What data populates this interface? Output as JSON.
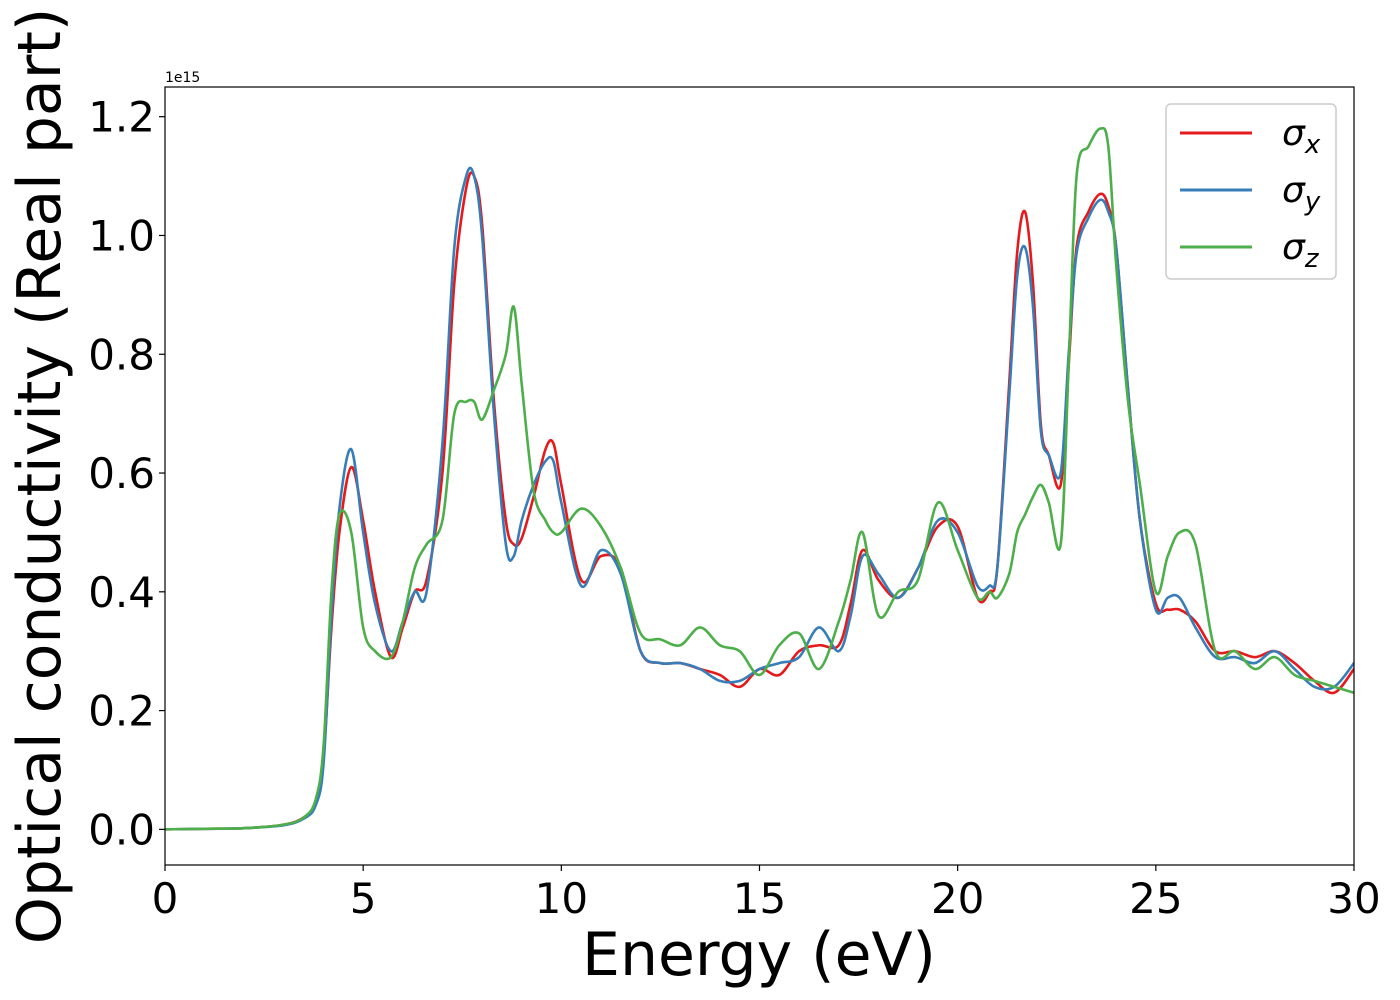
{
  "chart_data": {
    "type": "line",
    "title": "",
    "xlabel": "Energy (eV)",
    "ylabel": "Optical conductivity (Real part)",
    "y_offset_label": "1e15",
    "xlim": [
      0,
      30
    ],
    "ylim": [
      -0.06,
      1.25
    ],
    "x_ticks": [
      0,
      5,
      10,
      15,
      20,
      25,
      30
    ],
    "y_ticks": [
      0.0,
      0.2,
      0.4,
      0.6,
      0.8,
      1.0,
      1.2
    ],
    "x_tick_labels": [
      "0",
      "5",
      "10",
      "15",
      "20",
      "25",
      "30"
    ],
    "y_tick_labels": [
      "0.0",
      "0.2",
      "0.4",
      "0.6",
      "0.8",
      "1.0",
      "1.2"
    ],
    "grid": false,
    "legend_position": "upper-right",
    "series": [
      {
        "name": "σx",
        "symbol": "σ",
        "subscript": "x",
        "color": "#e41a1c",
        "x": [
          0,
          1,
          2,
          3,
          3.5,
          3.8,
          4.0,
          4.2,
          4.4,
          4.7,
          5.0,
          5.3,
          5.7,
          6.0,
          6.3,
          6.6,
          7.0,
          7.3,
          7.6,
          7.8,
          8.0,
          8.3,
          8.6,
          8.8,
          9.0,
          9.3,
          9.6,
          9.8,
          10.0,
          10.5,
          11.0,
          11.5,
          12.0,
          12.5,
          13.0,
          13.5,
          14.0,
          14.5,
          15.0,
          15.5,
          16.0,
          16.5,
          17.0,
          17.3,
          17.6,
          18.0,
          18.5,
          19.0,
          19.5,
          20.0,
          20.5,
          20.8,
          21.0,
          21.3,
          21.5,
          21.7,
          21.9,
          22.1,
          22.3,
          22.6,
          22.8,
          23.0,
          23.3,
          23.6,
          23.8,
          24.0,
          24.3,
          24.6,
          25.0,
          25.3,
          25.6,
          26.0,
          26.5,
          27.0,
          27.5,
          28.0,
          28.5,
          29.0,
          29.5,
          30.0
        ],
        "values": [
          0.0,
          0.001,
          0.002,
          0.008,
          0.02,
          0.045,
          0.12,
          0.34,
          0.5,
          0.61,
          0.52,
          0.4,
          0.29,
          0.34,
          0.4,
          0.42,
          0.6,
          0.92,
          1.08,
          1.1,
          1.02,
          0.72,
          0.52,
          0.48,
          0.49,
          0.56,
          0.64,
          0.65,
          0.58,
          0.42,
          0.46,
          0.44,
          0.3,
          0.28,
          0.28,
          0.27,
          0.26,
          0.24,
          0.27,
          0.26,
          0.3,
          0.31,
          0.31,
          0.38,
          0.47,
          0.42,
          0.39,
          0.44,
          0.51,
          0.51,
          0.39,
          0.4,
          0.44,
          0.75,
          0.97,
          1.04,
          0.92,
          0.68,
          0.63,
          0.58,
          0.78,
          0.98,
          1.04,
          1.07,
          1.05,
          0.98,
          0.74,
          0.52,
          0.38,
          0.37,
          0.37,
          0.35,
          0.3,
          0.3,
          0.29,
          0.3,
          0.28,
          0.25,
          0.23,
          0.27
        ]
      },
      {
        "name": "σy",
        "symbol": "σ",
        "subscript": "y",
        "color": "#377eb8",
        "x": [
          0,
          1,
          2,
          3,
          3.5,
          3.8,
          4.0,
          4.2,
          4.4,
          4.7,
          5.0,
          5.3,
          5.7,
          6.0,
          6.3,
          6.6,
          7.0,
          7.3,
          7.6,
          7.8,
          8.0,
          8.3,
          8.6,
          8.8,
          9.0,
          9.3,
          9.6,
          9.8,
          10.0,
          10.5,
          11.0,
          11.5,
          12.0,
          12.5,
          13.0,
          13.5,
          14.0,
          14.5,
          15.0,
          15.5,
          16.0,
          16.5,
          17.0,
          17.3,
          17.6,
          18.0,
          18.5,
          19.0,
          19.5,
          20.0,
          20.5,
          20.8,
          21.0,
          21.3,
          21.5,
          21.7,
          21.9,
          22.1,
          22.3,
          22.6,
          22.8,
          23.0,
          23.3,
          23.6,
          23.8,
          24.0,
          24.3,
          24.6,
          25.0,
          25.3,
          25.6,
          26.0,
          26.5,
          27.0,
          27.5,
          28.0,
          28.5,
          29.0,
          29.5,
          30.0
        ],
        "values": [
          0.0,
          0.001,
          0.002,
          0.007,
          0.018,
          0.04,
          0.11,
          0.36,
          0.54,
          0.64,
          0.5,
          0.38,
          0.3,
          0.35,
          0.4,
          0.4,
          0.65,
          0.98,
          1.1,
          1.1,
          1.0,
          0.7,
          0.48,
          0.46,
          0.52,
          0.58,
          0.62,
          0.62,
          0.55,
          0.41,
          0.47,
          0.43,
          0.3,
          0.28,
          0.28,
          0.27,
          0.25,
          0.25,
          0.27,
          0.28,
          0.29,
          0.34,
          0.3,
          0.36,
          0.46,
          0.43,
          0.39,
          0.44,
          0.52,
          0.5,
          0.41,
          0.41,
          0.44,
          0.73,
          0.93,
          0.98,
          0.88,
          0.67,
          0.63,
          0.6,
          0.8,
          0.97,
          1.03,
          1.06,
          1.04,
          0.98,
          0.74,
          0.52,
          0.37,
          0.39,
          0.39,
          0.34,
          0.29,
          0.29,
          0.28,
          0.3,
          0.27,
          0.24,
          0.24,
          0.28
        ]
      },
      {
        "name": "σz",
        "symbol": "σ",
        "subscript": "z",
        "color": "#4daf4a",
        "x": [
          0,
          1,
          2,
          3,
          3.5,
          3.8,
          4.0,
          4.2,
          4.4,
          4.7,
          5.0,
          5.3,
          5.7,
          6.0,
          6.3,
          6.6,
          7.0,
          7.3,
          7.6,
          7.8,
          8.0,
          8.3,
          8.6,
          8.8,
          9.0,
          9.3,
          9.6,
          9.8,
          10.0,
          10.5,
          11.0,
          11.5,
          12.0,
          12.5,
          13.0,
          13.5,
          14.0,
          14.5,
          15.0,
          15.5,
          16.0,
          16.5,
          17.0,
          17.3,
          17.6,
          18.0,
          18.5,
          19.0,
          19.5,
          20.0,
          20.5,
          20.8,
          21.0,
          21.3,
          21.5,
          21.7,
          21.9,
          22.1,
          22.3,
          22.6,
          22.8,
          23.0,
          23.3,
          23.6,
          23.8,
          24.0,
          24.3,
          24.6,
          25.0,
          25.3,
          25.6,
          26.0,
          26.5,
          27.0,
          27.5,
          28.0,
          28.5,
          29.0,
          29.5,
          30.0
        ],
        "values": [
          0.0,
          0.001,
          0.002,
          0.008,
          0.02,
          0.05,
          0.14,
          0.4,
          0.53,
          0.5,
          0.34,
          0.3,
          0.29,
          0.35,
          0.44,
          0.48,
          0.52,
          0.7,
          0.72,
          0.72,
          0.69,
          0.74,
          0.8,
          0.88,
          0.75,
          0.57,
          0.52,
          0.5,
          0.5,
          0.54,
          0.51,
          0.44,
          0.33,
          0.32,
          0.31,
          0.34,
          0.31,
          0.3,
          0.26,
          0.31,
          0.33,
          0.27,
          0.35,
          0.42,
          0.5,
          0.36,
          0.4,
          0.42,
          0.55,
          0.47,
          0.39,
          0.4,
          0.39,
          0.43,
          0.5,
          0.53,
          0.56,
          0.58,
          0.55,
          0.48,
          0.78,
          1.1,
          1.15,
          1.18,
          1.15,
          0.95,
          0.72,
          0.58,
          0.4,
          0.46,
          0.5,
          0.48,
          0.3,
          0.3,
          0.27,
          0.29,
          0.26,
          0.25,
          0.24,
          0.23
        ]
      }
    ]
  }
}
